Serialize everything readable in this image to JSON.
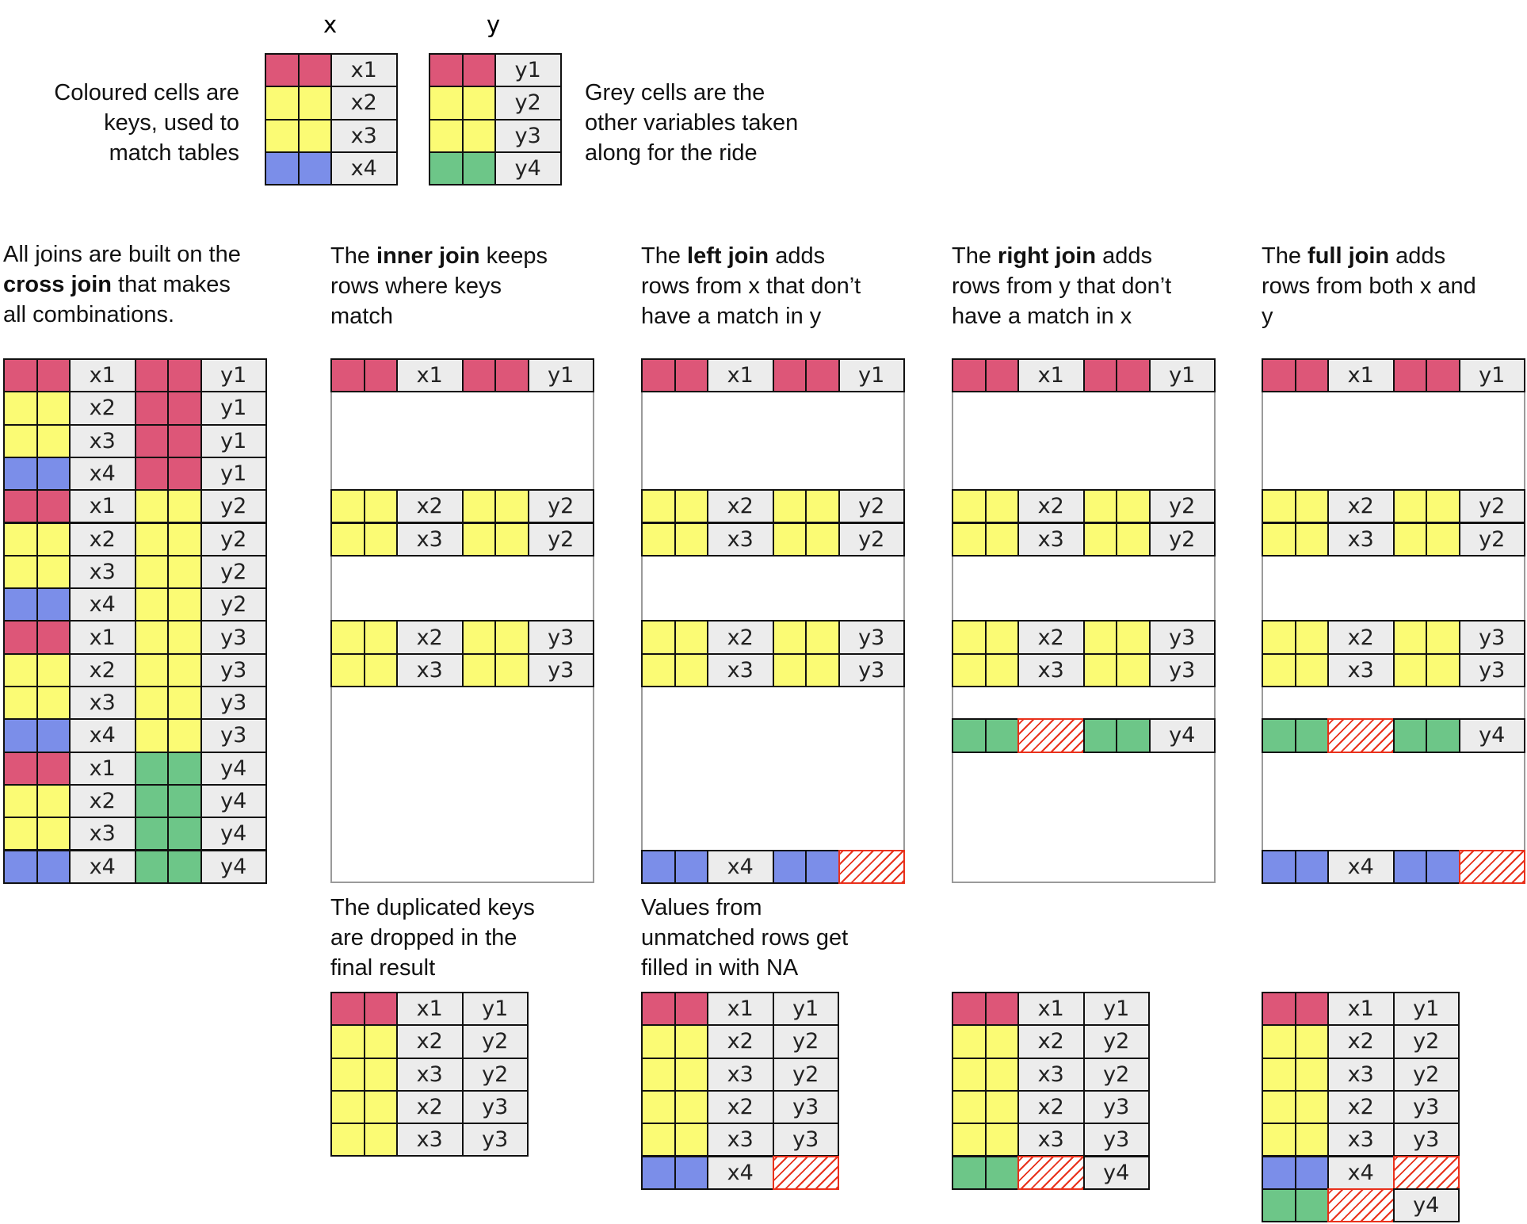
{
  "legend": {
    "x_label": "x",
    "y_label": "y",
    "left_text": [
      "Coloured cells are",
      "keys, used to",
      "match tables"
    ],
    "right_text": [
      "Grey cells are the",
      "other variables taken",
      "along for the ride"
    ],
    "x_table": [
      [
        "red",
        "x1"
      ],
      [
        "yel",
        "x2"
      ],
      [
        "yel",
        "x3"
      ],
      [
        "blu",
        "x4"
      ]
    ],
    "y_table": [
      [
        "red",
        "y1"
      ],
      [
        "yel",
        "y2"
      ],
      [
        "yel",
        "y3"
      ],
      [
        "grn",
        "y4"
      ]
    ]
  },
  "columns": [
    {
      "lines": [
        [
          {
            "t": "All joins are built on the",
            "b": false
          }
        ],
        [
          {
            "t": "cross join",
            "b": true
          },
          {
            "t": " that makes",
            "b": false
          }
        ],
        [
          {
            "t": "all combinations.",
            "b": false
          }
        ]
      ],
      "joined_rows": [
        {
          "x": [
            "red",
            "x1"
          ],
          "y": [
            "red",
            "y1"
          ]
        },
        {
          "x": [
            "yel",
            "x2"
          ],
          "y": [
            "red",
            "y1"
          ]
        },
        {
          "x": [
            "yel",
            "x3"
          ],
          "y": [
            "red",
            "y1"
          ]
        },
        {
          "x": [
            "blu",
            "x4"
          ],
          "y": [
            "red",
            "y1"
          ]
        },
        {
          "x": [
            "red",
            "x1"
          ],
          "y": [
            "yel",
            "y2"
          ]
        },
        {
          "x": [
            "yel",
            "x2"
          ],
          "y": [
            "yel",
            "y2"
          ]
        },
        {
          "x": [
            "yel",
            "x3"
          ],
          "y": [
            "yel",
            "y2"
          ]
        },
        {
          "x": [
            "blu",
            "x4"
          ],
          "y": [
            "yel",
            "y2"
          ]
        },
        {
          "x": [
            "red",
            "x1"
          ],
          "y": [
            "yel",
            "y3"
          ]
        },
        {
          "x": [
            "yel",
            "x2"
          ],
          "y": [
            "yel",
            "y3"
          ]
        },
        {
          "x": [
            "yel",
            "x3"
          ],
          "y": [
            "yel",
            "y3"
          ]
        },
        {
          "x": [
            "blu",
            "x4"
          ],
          "y": [
            "yel",
            "y3"
          ]
        },
        {
          "x": [
            "red",
            "x1"
          ],
          "y": [
            "grn",
            "y4"
          ]
        },
        {
          "x": [
            "yel",
            "x2"
          ],
          "y": [
            "grn",
            "y4"
          ]
        },
        {
          "x": [
            "yel",
            "x3"
          ],
          "y": [
            "grn",
            "y4"
          ]
        },
        {
          "x": [
            "blu",
            "x4"
          ],
          "y": [
            "grn",
            "y4"
          ]
        }
      ],
      "frame": false
    },
    {
      "lines": [
        [
          {
            "t": "The ",
            "b": false
          },
          {
            "t": "inner join",
            "b": true
          },
          {
            "t": " keeps",
            "b": false
          }
        ],
        [
          {
            "t": "rows where keys",
            "b": false
          }
        ],
        [
          {
            "t": "match",
            "b": false
          }
        ]
      ],
      "joined_rows": [
        {
          "x": [
            "red",
            "x1"
          ],
          "y": [
            "red",
            "y1"
          ]
        },
        null,
        null,
        null,
        {
          "x": [
            "yel",
            "x2"
          ],
          "y": [
            "yel",
            "y2"
          ]
        },
        {
          "x": [
            "yel",
            "x3"
          ],
          "y": [
            "yel",
            "y2"
          ]
        },
        null,
        null,
        {
          "x": [
            "yel",
            "x2"
          ],
          "y": [
            "yel",
            "y3"
          ]
        },
        {
          "x": [
            "yel",
            "x3"
          ],
          "y": [
            "yel",
            "y3"
          ]
        },
        null,
        null,
        null,
        null,
        null,
        null
      ],
      "frame": true,
      "note": [
        "The duplicated keys",
        "are dropped in the",
        "final result"
      ],
      "result": [
        [
          [
            "red",
            ""
          ],
          [
            "red",
            ""
          ],
          [
            "gry",
            "x1"
          ],
          [
            "gry",
            "y1"
          ]
        ],
        [
          [
            "yel",
            ""
          ],
          [
            "yel",
            ""
          ],
          [
            "gry",
            "x2"
          ],
          [
            "gry",
            "y2"
          ]
        ],
        [
          [
            "yel",
            ""
          ],
          [
            "yel",
            ""
          ],
          [
            "gry",
            "x3"
          ],
          [
            "gry",
            "y2"
          ]
        ],
        [
          [
            "yel",
            ""
          ],
          [
            "yel",
            ""
          ],
          [
            "gry",
            "x2"
          ],
          [
            "gry",
            "y3"
          ]
        ],
        [
          [
            "yel",
            ""
          ],
          [
            "yel",
            ""
          ],
          [
            "gry",
            "x3"
          ],
          [
            "gry",
            "y3"
          ]
        ]
      ]
    },
    {
      "lines": [
        [
          {
            "t": "The ",
            "b": false
          },
          {
            "t": "left join",
            "b": true
          },
          {
            "t": " adds",
            "b": false
          }
        ],
        [
          {
            "t": "rows from x that don’t",
            "b": false
          }
        ],
        [
          {
            "t": "have a match in y",
            "b": false
          }
        ]
      ],
      "joined_rows": [
        {
          "x": [
            "red",
            "x1"
          ],
          "y": [
            "red",
            "y1"
          ]
        },
        null,
        null,
        null,
        {
          "x": [
            "yel",
            "x2"
          ],
          "y": [
            "yel",
            "y2"
          ]
        },
        {
          "x": [
            "yel",
            "x3"
          ],
          "y": [
            "yel",
            "y2"
          ]
        },
        null,
        null,
        {
          "x": [
            "yel",
            "x2"
          ],
          "y": [
            "yel",
            "y3"
          ]
        },
        {
          "x": [
            "yel",
            "x3"
          ],
          "y": [
            "yel",
            "y3"
          ]
        },
        null,
        null,
        null,
        null,
        null,
        {
          "x": [
            "blu",
            "x4"
          ],
          "y": [
            "blu",
            "NA"
          ]
        }
      ],
      "frame": true,
      "note": [
        "Values from",
        "unmatched rows get",
        "filled in with NA"
      ],
      "result": [
        [
          [
            "red",
            ""
          ],
          [
            "red",
            ""
          ],
          [
            "gry",
            "x1"
          ],
          [
            "gry",
            "y1"
          ]
        ],
        [
          [
            "yel",
            ""
          ],
          [
            "yel",
            ""
          ],
          [
            "gry",
            "x2"
          ],
          [
            "gry",
            "y2"
          ]
        ],
        [
          [
            "yel",
            ""
          ],
          [
            "yel",
            ""
          ],
          [
            "gry",
            "x3"
          ],
          [
            "gry",
            "y2"
          ]
        ],
        [
          [
            "yel",
            ""
          ],
          [
            "yel",
            ""
          ],
          [
            "gry",
            "x2"
          ],
          [
            "gry",
            "y3"
          ]
        ],
        [
          [
            "yel",
            ""
          ],
          [
            "yel",
            ""
          ],
          [
            "gry",
            "x3"
          ],
          [
            "gry",
            "y3"
          ]
        ],
        [
          [
            "blu",
            ""
          ],
          [
            "blu",
            ""
          ],
          [
            "gry",
            "x4"
          ],
          [
            "na",
            ""
          ]
        ]
      ]
    },
    {
      "lines": [
        [
          {
            "t": "The ",
            "b": false
          },
          {
            "t": "right join",
            "b": true
          },
          {
            "t": " adds",
            "b": false
          }
        ],
        [
          {
            "t": "rows from y that don’t",
            "b": false
          }
        ],
        [
          {
            "t": "have a match in x",
            "b": false
          }
        ]
      ],
      "joined_rows": [
        {
          "x": [
            "red",
            "x1"
          ],
          "y": [
            "red",
            "y1"
          ]
        },
        null,
        null,
        null,
        {
          "x": [
            "yel",
            "x2"
          ],
          "y": [
            "yel",
            "y2"
          ]
        },
        {
          "x": [
            "yel",
            "x3"
          ],
          "y": [
            "yel",
            "y2"
          ]
        },
        null,
        null,
        {
          "x": [
            "yel",
            "x2"
          ],
          "y": [
            "yel",
            "y3"
          ]
        },
        {
          "x": [
            "yel",
            "x3"
          ],
          "y": [
            "yel",
            "y3"
          ]
        },
        null,
        {
          "x": [
            "grn",
            "NA"
          ],
          "y": [
            "grn",
            "y4"
          ]
        },
        null,
        null,
        null,
        null
      ],
      "frame": true,
      "result": [
        [
          [
            "red",
            ""
          ],
          [
            "red",
            ""
          ],
          [
            "gry",
            "x1"
          ],
          [
            "gry",
            "y1"
          ]
        ],
        [
          [
            "yel",
            ""
          ],
          [
            "yel",
            ""
          ],
          [
            "gry",
            "x2"
          ],
          [
            "gry",
            "y2"
          ]
        ],
        [
          [
            "yel",
            ""
          ],
          [
            "yel",
            ""
          ],
          [
            "gry",
            "x3"
          ],
          [
            "gry",
            "y2"
          ]
        ],
        [
          [
            "yel",
            ""
          ],
          [
            "yel",
            ""
          ],
          [
            "gry",
            "x2"
          ],
          [
            "gry",
            "y3"
          ]
        ],
        [
          [
            "yel",
            ""
          ],
          [
            "yel",
            ""
          ],
          [
            "gry",
            "x3"
          ],
          [
            "gry",
            "y3"
          ]
        ],
        [
          [
            "grn",
            ""
          ],
          [
            "grn",
            ""
          ],
          [
            "na",
            ""
          ],
          [
            "gry",
            "y4"
          ]
        ]
      ]
    },
    {
      "lines": [
        [
          {
            "t": "The ",
            "b": false
          },
          {
            "t": "full join",
            "b": true
          },
          {
            "t": " adds",
            "b": false
          }
        ],
        [
          {
            "t": "rows from both x and",
            "b": false
          }
        ],
        [
          {
            "t": "y",
            "b": false
          }
        ]
      ],
      "joined_rows": [
        {
          "x": [
            "red",
            "x1"
          ],
          "y": [
            "red",
            "y1"
          ]
        },
        null,
        null,
        null,
        {
          "x": [
            "yel",
            "x2"
          ],
          "y": [
            "yel",
            "y2"
          ]
        },
        {
          "x": [
            "yel",
            "x3"
          ],
          "y": [
            "yel",
            "y2"
          ]
        },
        null,
        null,
        {
          "x": [
            "yel",
            "x2"
          ],
          "y": [
            "yel",
            "y3"
          ]
        },
        {
          "x": [
            "yel",
            "x3"
          ],
          "y": [
            "yel",
            "y3"
          ]
        },
        null,
        {
          "x": [
            "grn",
            "NA"
          ],
          "y": [
            "grn",
            "y4"
          ]
        },
        null,
        null,
        null,
        {
          "x": [
            "blu",
            "x4"
          ],
          "y": [
            "blu",
            "NA"
          ]
        }
      ],
      "frame": true,
      "result": [
        [
          [
            "red",
            ""
          ],
          [
            "red",
            ""
          ],
          [
            "gry",
            "x1"
          ],
          [
            "gry",
            "y1"
          ]
        ],
        [
          [
            "yel",
            ""
          ],
          [
            "yel",
            ""
          ],
          [
            "gry",
            "x2"
          ],
          [
            "gry",
            "y2"
          ]
        ],
        [
          [
            "yel",
            ""
          ],
          [
            "yel",
            ""
          ],
          [
            "gry",
            "x3"
          ],
          [
            "gry",
            "y2"
          ]
        ],
        [
          [
            "yel",
            ""
          ],
          [
            "yel",
            ""
          ],
          [
            "gry",
            "x2"
          ],
          [
            "gry",
            "y3"
          ]
        ],
        [
          [
            "yel",
            ""
          ],
          [
            "yel",
            ""
          ],
          [
            "gry",
            "x3"
          ],
          [
            "gry",
            "y3"
          ]
        ],
        [
          [
            "blu",
            ""
          ],
          [
            "blu",
            ""
          ],
          [
            "gry",
            "x4"
          ],
          [
            "na",
            ""
          ]
        ],
        [
          [
            "grn",
            ""
          ],
          [
            "grn",
            ""
          ],
          [
            "na",
            ""
          ],
          [
            "gry",
            "y4"
          ]
        ]
      ]
    }
  ]
}
